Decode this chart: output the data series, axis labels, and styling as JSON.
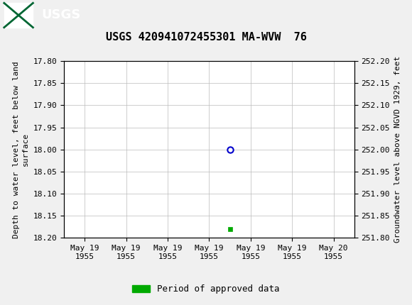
{
  "title": "USGS 420941072455301 MA-WVW  76",
  "title_fontsize": 11,
  "header_color": "#006633",
  "background_color": "#f0f0f0",
  "plot_background": "#ffffff",
  "grid_color": "#bbbbbb",
  "left_ylabel": "Depth to water level, feet below land\nsurface",
  "right_ylabel": "Groundwater level above NGVD 1929, feet",
  "ylabel_fontsize": 8,
  "ylim_left_top": 17.8,
  "ylim_left_bottom": 18.2,
  "ylim_right_top": 252.2,
  "ylim_right_bottom": 251.8,
  "yticks_left": [
    17.8,
    17.85,
    17.9,
    17.95,
    18.0,
    18.05,
    18.1,
    18.15,
    18.2
  ],
  "yticks_right": [
    252.2,
    252.15,
    252.1,
    252.05,
    252.0,
    251.95,
    251.9,
    251.85,
    251.8
  ],
  "data_point_x": 3.5,
  "data_point_y": 18.0,
  "data_point_color": "#0000cc",
  "data_point_size": 6,
  "green_square_x": 3.5,
  "green_square_y": 18.18,
  "green_square_color": "#00aa00",
  "legend_label": "Period of approved data",
  "legend_color": "#00aa00",
  "xtick_labels": [
    "May 19\n1955",
    "May 19\n1955",
    "May 19\n1955",
    "May 19\n1955",
    "May 19\n1955",
    "May 19\n1955",
    "May 20\n1955"
  ],
  "xtick_positions": [
    0,
    1,
    2,
    3,
    4,
    5,
    6
  ],
  "tick_fontsize": 8,
  "font_family": "monospace"
}
